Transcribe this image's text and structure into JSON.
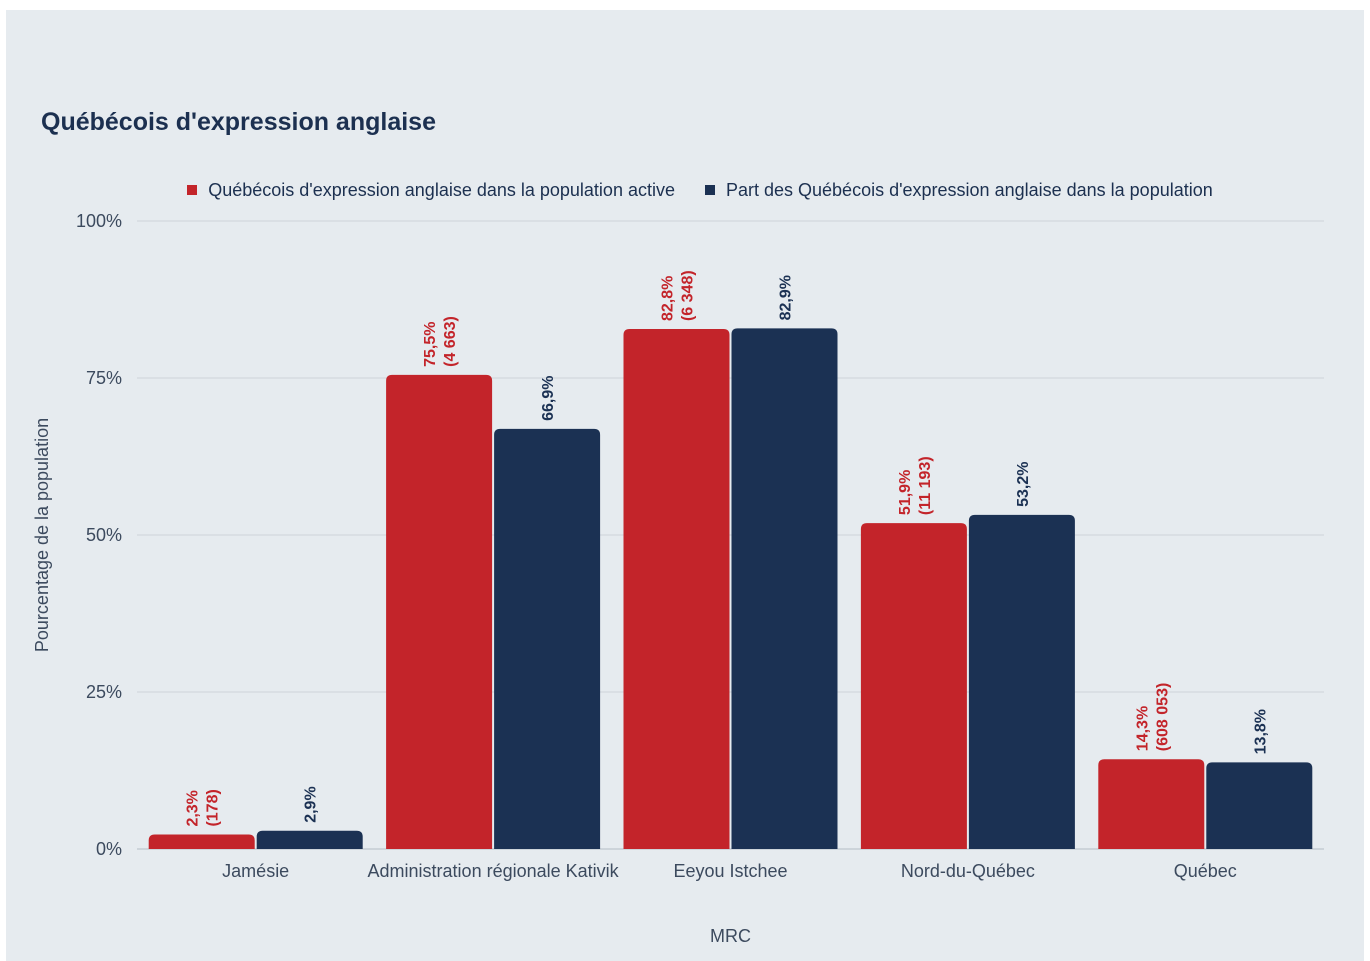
{
  "chart_data": {
    "type": "bar",
    "title": "Québécois d'expression anglaise",
    "xlabel": "MRC",
    "ylabel": "Pourcentage de la population",
    "ylim": [
      0,
      100
    ],
    "yticks": [
      "0%",
      "25%",
      "50%",
      "75%",
      "100%"
    ],
    "ytick_values": [
      0,
      25,
      50,
      75,
      100
    ],
    "grid": true,
    "legend_position": "top",
    "categories": [
      "Jamésie",
      "Administration régionale Kativik",
      "Eeyou Istchee",
      "Nord-du-Québec",
      "Québec"
    ],
    "series": [
      {
        "name": "Québécois d'expression anglaise dans la population active",
        "color": "#c3242a",
        "values": [
          2.3,
          75.5,
          82.8,
          51.9,
          14.3
        ],
        "labels": [
          [
            "2,3%",
            "(178)"
          ],
          [
            "75,5%",
            "(4 663)"
          ],
          [
            "82,8%",
            "(6 348)"
          ],
          [
            "51,9%",
            "(11 193)"
          ],
          [
            "14,3%",
            "(608 053)"
          ]
        ]
      },
      {
        "name": "Part des Québécois d'expression anglaise dans la population",
        "color": "#1b3153",
        "values": [
          2.9,
          66.9,
          82.9,
          53.2,
          13.8
        ],
        "labels": [
          [
            "2,9%"
          ],
          [
            "66,9%"
          ],
          [
            "82,9%"
          ],
          [
            "53,2%"
          ],
          [
            "13,8%"
          ]
        ]
      }
    ]
  }
}
